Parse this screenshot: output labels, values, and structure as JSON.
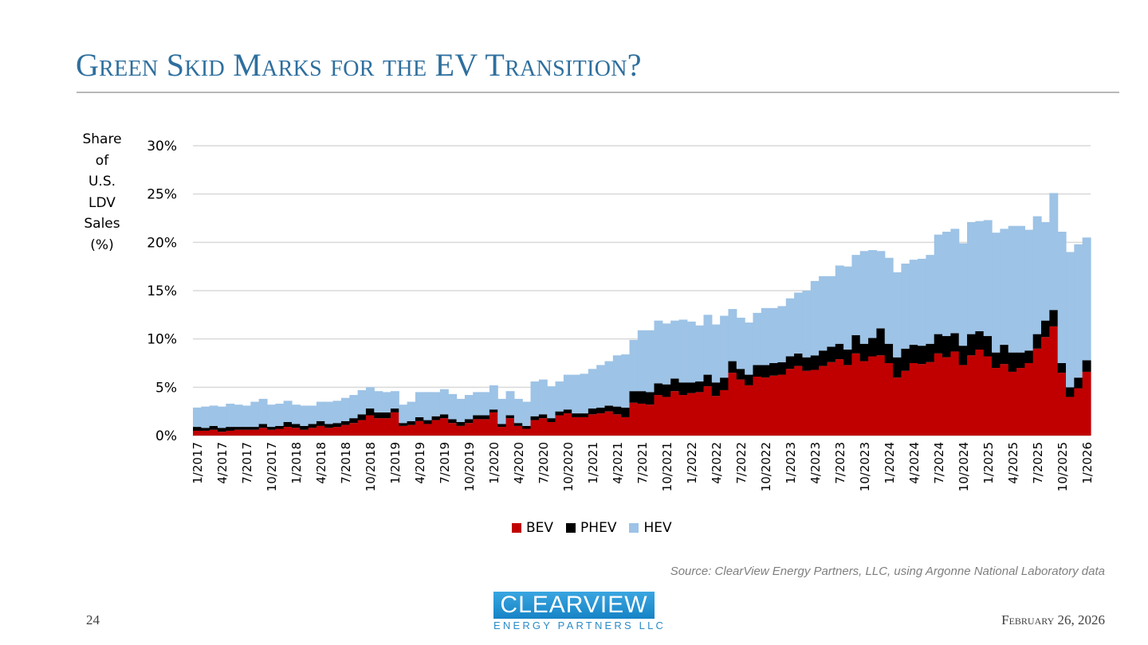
{
  "slide": {
    "title": "Green Skid Marks for the EV Transition?",
    "page_number": "24",
    "date": "February 26, 2026",
    "source": "Source: ClearView Energy Partners, LLC, using Argonne National Laboratory data",
    "logo": {
      "top": "CLEARVIEW",
      "bottom": "ENERGY PARTNERS LLC"
    }
  },
  "chart_data": {
    "type": "bar",
    "stacked": true,
    "title": "",
    "ylabel": "Share of U.S. LDV Sales (%)",
    "ylabel_lines": [
      "Share",
      "of",
      "U.S.",
      "LDV",
      "Sales",
      "(%)"
    ],
    "xlabel": "",
    "ylim": [
      0,
      30
    ],
    "yticks": [
      0,
      5,
      10,
      15,
      20,
      25,
      30
    ],
    "ytick_labels": [
      "0%",
      "5%",
      "10%",
      "15%",
      "20%",
      "25%",
      "30%"
    ],
    "grid": true,
    "legend_position": "bottom",
    "colors": {
      "BEV": "#c00000",
      "PHEV": "#000000",
      "HEV": "#9dc3e6"
    },
    "x_start": "1/2017",
    "x_end": "1/2026",
    "xtick_labels": [
      "1/2017",
      "4/2017",
      "7/2017",
      "10/2017",
      "1/2018",
      "4/2018",
      "7/2018",
      "10/2018",
      "1/2019",
      "4/2019",
      "7/2019",
      "10/2019",
      "1/2020",
      "4/2020",
      "7/2020",
      "10/2020",
      "1/2021",
      "4/2021",
      "7/2021",
      "10/2021",
      "1/2022",
      "4/2022",
      "7/2022",
      "10/2022",
      "1/2023",
      "4/2023",
      "7/2023",
      "10/2023",
      "1/2024",
      "4/2024",
      "7/2024",
      "10/2024",
      "1/2025",
      "4/2025",
      "7/2025",
      "10/2025",
      "1/2026"
    ],
    "series": [
      {
        "name": "BEV",
        "values": [
          0.5,
          0.5,
          0.6,
          0.4,
          0.5,
          0.6,
          0.6,
          0.6,
          0.8,
          0.6,
          0.7,
          0.9,
          0.8,
          0.6,
          0.8,
          1.0,
          0.8,
          0.9,
          1.1,
          1.3,
          1.6,
          2.1,
          1.8,
          1.8,
          2.4,
          1.0,
          1.1,
          1.5,
          1.2,
          1.6,
          1.8,
          1.3,
          1.0,
          1.3,
          1.7,
          1.7,
          2.4,
          0.9,
          1.8,
          1.0,
          0.7,
          1.6,
          1.8,
          1.4,
          2.1,
          2.3,
          1.9,
          1.9,
          2.2,
          2.3,
          2.5,
          2.2,
          1.9,
          3.4,
          3.3,
          3.2,
          4.2,
          4.0,
          4.6,
          4.2,
          4.4,
          4.5,
          5.1,
          4.1,
          4.7,
          6.5,
          5.8,
          5.2,
          6.1,
          6.0,
          6.2,
          6.3,
          6.9,
          7.2,
          6.7,
          6.8,
          7.2,
          7.6,
          7.9,
          7.3,
          8.5,
          7.7,
          8.2,
          8.3,
          7.5,
          6.0,
          6.7,
          7.5,
          7.4,
          7.6,
          8.5,
          8.1,
          8.7,
          7.3,
          8.3,
          8.9,
          8.2,
          7.0,
          7.4,
          6.6,
          7.0,
          7.5,
          9.0,
          10.2,
          11.3,
          6.5,
          4.0,
          4.9,
          6.6
        ]
      },
      {
        "name": "PHEV",
        "values": [
          0.4,
          0.3,
          0.4,
          0.4,
          0.4,
          0.3,
          0.3,
          0.3,
          0.4,
          0.3,
          0.3,
          0.5,
          0.4,
          0.4,
          0.4,
          0.5,
          0.4,
          0.4,
          0.4,
          0.5,
          0.6,
          0.7,
          0.6,
          0.6,
          0.4,
          0.3,
          0.4,
          0.4,
          0.4,
          0.4,
          0.4,
          0.4,
          0.4,
          0.4,
          0.4,
          0.4,
          0.3,
          0.3,
          0.3,
          0.3,
          0.3,
          0.4,
          0.4,
          0.4,
          0.4,
          0.4,
          0.4,
          0.4,
          0.6,
          0.6,
          0.6,
          0.8,
          1.0,
          1.2,
          1.3,
          1.3,
          1.2,
          1.3,
          1.3,
          1.3,
          1.1,
          1.1,
          1.2,
          1.4,
          1.3,
          1.2,
          1.1,
          1.1,
          1.2,
          1.3,
          1.3,
          1.3,
          1.3,
          1.3,
          1.4,
          1.5,
          1.6,
          1.6,
          1.6,
          1.6,
          1.9,
          1.8,
          1.9,
          2.8,
          2.0,
          2.1,
          2.3,
          1.9,
          1.9,
          1.9,
          2.0,
          2.2,
          1.9,
          2.0,
          2.2,
          1.9,
          2.1,
          1.6,
          2.0,
          2.0,
          1.6,
          1.3,
          1.5,
          1.7,
          1.7,
          1.0,
          1.0,
          1.1,
          1.2
        ]
      },
      {
        "name": "HEV",
        "values": [
          2.0,
          2.2,
          2.1,
          2.2,
          2.4,
          2.3,
          2.2,
          2.6,
          2.6,
          2.3,
          2.3,
          2.2,
          2.0,
          2.1,
          1.9,
          2.0,
          2.3,
          2.3,
          2.4,
          2.4,
          2.5,
          2.2,
          2.2,
          2.1,
          1.8,
          1.9,
          2.0,
          2.6,
          2.9,
          2.5,
          2.6,
          2.6,
          2.4,
          2.5,
          2.4,
          2.4,
          2.5,
          2.6,
          2.5,
          2.5,
          2.5,
          3.6,
          3.6,
          3.3,
          3.1,
          3.6,
          4.0,
          4.1,
          4.1,
          4.4,
          4.6,
          5.3,
          5.5,
          5.3,
          6.3,
          6.4,
          6.5,
          6.3,
          6.0,
          6.5,
          6.3,
          5.8,
          6.2,
          6.0,
          6.4,
          5.4,
          5.3,
          5.4,
          5.4,
          5.9,
          5.7,
          5.8,
          6.0,
          6.3,
          6.9,
          7.7,
          7.7,
          7.3,
          8.1,
          8.6,
          8.3,
          9.6,
          9.1,
          8.0,
          8.9,
          8.8,
          8.8,
          8.8,
          9.0,
          9.2,
          10.3,
          10.8,
          10.8,
          10.6,
          11.6,
          11.4,
          12.0,
          12.4,
          12.0,
          13.1,
          13.1,
          12.5,
          12.2,
          10.2,
          12.1,
          13.6,
          14.0,
          13.8,
          12.7
        ]
      }
    ]
  }
}
